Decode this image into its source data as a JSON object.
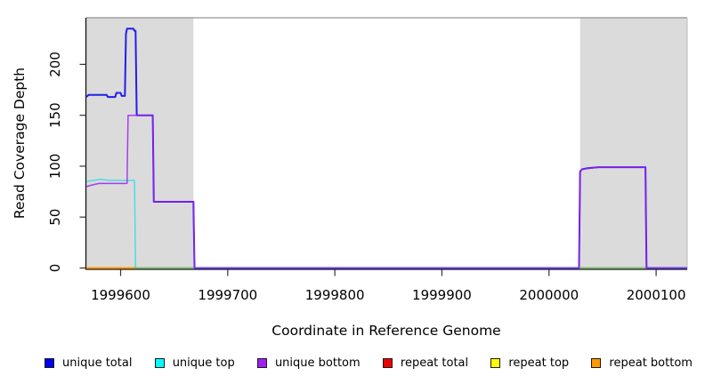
{
  "chart_data": {
    "type": "line",
    "title": "",
    "xlabel": "Coordinate in Reference Genome",
    "ylabel": "Read Coverage Depth",
    "xlim": [
      1999568,
      2000129
    ],
    "ylim": [
      0,
      245
    ],
    "x_ticks": [
      1999600,
      1999700,
      1999800,
      1999900,
      2000000,
      2000100
    ],
    "y_ticks": [
      0,
      50,
      100,
      150,
      200
    ],
    "grid": false,
    "legend_position": "bottom",
    "plot_bg": "#ffffff",
    "repeat_region_color": "#dbdbdb",
    "repeat_regions": [
      [
        1999568,
        1999668
      ],
      [
        2000029,
        2000129
      ]
    ],
    "series": [
      {
        "name": "repeat total",
        "color": "#dd0000",
        "opacity": 1,
        "width": 1.4,
        "points": [
          [
            1999568,
            0
          ],
          [
            2000129,
            0
          ]
        ]
      },
      {
        "name": "repeat top",
        "color": "#ffff00",
        "opacity": 1,
        "width": 1.4,
        "points": [
          [
            1999568,
            0
          ],
          [
            2000129,
            0
          ]
        ]
      },
      {
        "name": "repeat bottom",
        "color": "#ff9500",
        "opacity": 1,
        "width": 1.7,
        "points": [
          [
            1999568,
            0
          ],
          [
            2000129,
            0
          ]
        ]
      },
      {
        "name": "unique total",
        "color": "#2020e8",
        "opacity": 1,
        "width": 2,
        "points": [
          [
            1999568,
            168
          ],
          [
            1999570,
            170
          ],
          [
            1999587,
            170
          ],
          [
            1999588,
            168
          ],
          [
            1999595,
            168
          ],
          [
            1999596,
            172
          ],
          [
            1999600,
            172
          ],
          [
            1999601,
            169
          ],
          [
            1999604,
            169
          ],
          [
            1999605,
            230
          ],
          [
            1999606,
            235
          ],
          [
            1999612,
            235
          ],
          [
            1999613,
            233
          ],
          [
            1999614,
            233
          ],
          [
            1999615,
            150
          ],
          [
            1999630,
            150
          ],
          [
            1999631,
            65
          ],
          [
            1999668,
            65
          ],
          [
            1999669,
            0
          ],
          [
            2000028,
            0
          ],
          [
            2000029,
            95
          ],
          [
            2000031,
            97
          ],
          [
            2000036,
            98
          ],
          [
            2000046,
            99
          ],
          [
            2000090,
            99
          ],
          [
            2000091,
            0
          ],
          [
            2000129,
            0
          ]
        ]
      },
      {
        "name": "unique top",
        "color": "#00dde8",
        "opacity": 0.65,
        "width": 1.5,
        "points": [
          [
            1999568,
            85
          ],
          [
            1999581,
            87
          ],
          [
            1999590,
            86
          ],
          [
            1999613,
            86
          ],
          [
            1999614,
            0
          ],
          [
            2000129,
            0
          ]
        ]
      },
      {
        "name": "unique bottom",
        "color": "#a020f0",
        "opacity": 0.85,
        "width": 1.5,
        "points": [
          [
            1999568,
            80
          ],
          [
            1999575,
            82
          ],
          [
            1999580,
            83
          ],
          [
            1999606,
            83
          ],
          [
            1999607,
            150
          ],
          [
            1999630,
            150
          ],
          [
            1999631,
            65
          ],
          [
            1999668,
            65
          ],
          [
            1999669,
            0
          ],
          [
            2000028,
            0
          ],
          [
            2000029,
            95
          ],
          [
            2000031,
            97
          ],
          [
            2000046,
            99
          ],
          [
            2000090,
            99
          ],
          [
            2000091,
            0
          ],
          [
            2000129,
            0
          ]
        ]
      }
    ]
  },
  "legend": {
    "items": [
      {
        "label": "unique total",
        "color": "#0000ee"
      },
      {
        "label": "unique top",
        "color": "#00ffff"
      },
      {
        "label": "unique bottom",
        "color": "#a020f0"
      },
      {
        "label": "repeat total",
        "color": "#ee0000"
      },
      {
        "label": "repeat top",
        "color": "#ffff00"
      },
      {
        "label": "repeat bottom",
        "color": "#ff9900"
      }
    ]
  }
}
